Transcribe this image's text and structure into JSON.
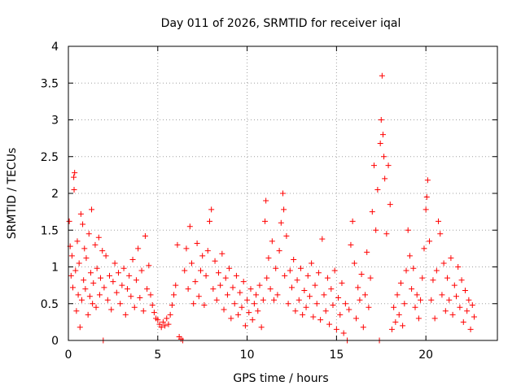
{
  "chart_data": {
    "type": "scatter",
    "title": "Day 011 of 2026, SRMTID for receiver iqal",
    "xlabel": "GPS time / hours",
    "ylabel": "SRMTID / TECUs",
    "xlim": [
      0,
      24
    ],
    "ylim": [
      0,
      4
    ],
    "xticks": [
      0,
      5,
      10,
      15,
      20
    ],
    "xtick_labels": [
      "0",
      "5",
      "10",
      "15",
      "20"
    ],
    "yticks": [
      0,
      0.5,
      1,
      1.5,
      2,
      2.5,
      3,
      3.5,
      4
    ],
    "ytick_labels": [
      "0",
      "0.5",
      "1",
      "1.5",
      "2",
      "2.5",
      "3",
      "3.5",
      "4"
    ],
    "grid": true,
    "marker": "+",
    "color": "#ff0000",
    "series": [
      {
        "name": "SRMTID",
        "points": [
          [
            0.05,
            1.62
          ],
          [
            0.1,
            1.28
          ],
          [
            0.15,
            0.88
          ],
          [
            0.2,
            1.15
          ],
          [
            0.25,
            0.72
          ],
          [
            0.3,
            2.22
          ],
          [
            0.32,
            2.05
          ],
          [
            0.35,
            2.28
          ],
          [
            0.4,
            0.95
          ],
          [
            0.45,
            0.4
          ],
          [
            0.5,
            1.35
          ],
          [
            0.55,
            0.62
          ],
          [
            0.6,
            1.05
          ],
          [
            0.65,
            0.18
          ],
          [
            0.7,
            1.72
          ],
          [
            0.75,
            0.55
          ],
          [
            0.8,
            1.58
          ],
          [
            0.85,
            0.82
          ],
          [
            0.9,
            1.25
          ],
          [
            0.95,
            0.7
          ],
          [
            1.0,
            1.12
          ],
          [
            1.1,
            0.35
          ],
          [
            1.15,
            1.45
          ],
          [
            1.2,
            0.6
          ],
          [
            1.25,
            0.92
          ],
          [
            1.3,
            1.78
          ],
          [
            1.35,
            0.5
          ],
          [
            1.4,
            0.78
          ],
          [
            1.5,
            1.3
          ],
          [
            1.55,
            0.45
          ],
          [
            1.6,
            0.98
          ],
          [
            1.7,
            1.4
          ],
          [
            1.75,
            0.62
          ],
          [
            1.8,
            0.85
          ],
          [
            1.9,
            1.22
          ],
          [
            1.95,
            0.0
          ],
          [
            2.0,
            0.72
          ],
          [
            2.1,
            1.15
          ],
          [
            2.2,
            0.55
          ],
          [
            2.3,
            0.88
          ],
          [
            2.4,
            0.42
          ],
          [
            2.5,
            0.8
          ],
          [
            2.6,
            1.05
          ],
          [
            2.7,
            0.65
          ],
          [
            2.8,
            0.92
          ],
          [
            2.9,
            0.5
          ],
          [
            3.0,
            0.75
          ],
          [
            3.1,
            0.98
          ],
          [
            3.2,
            0.35
          ],
          [
            3.3,
            0.7
          ],
          [
            3.4,
            0.88
          ],
          [
            3.5,
            0.6
          ],
          [
            3.6,
            1.1
          ],
          [
            3.7,
            0.45
          ],
          [
            3.8,
            0.82
          ],
          [
            3.9,
            1.25
          ],
          [
            4.0,
            0.58
          ],
          [
            4.1,
            0.95
          ],
          [
            4.2,
            0.4
          ],
          [
            4.3,
            1.42
          ],
          [
            4.4,
            0.7
          ],
          [
            4.5,
            1.02
          ],
          [
            4.6,
            0.62
          ],
          [
            4.7,
            0.48
          ],
          [
            4.8,
            0.38
          ],
          [
            4.9,
            0.3
          ],
          [
            5.0,
            0.28
          ],
          [
            5.1,
            0.22
          ],
          [
            5.2,
            0.18
          ],
          [
            5.3,
            0.25
          ],
          [
            5.4,
            0.2
          ],
          [
            5.5,
            0.3
          ],
          [
            5.6,
            0.22
          ],
          [
            5.7,
            0.35
          ],
          [
            5.8,
            0.48
          ],
          [
            5.9,
            0.62
          ],
          [
            6.0,
            0.75
          ],
          [
            6.1,
            1.3
          ],
          [
            6.2,
            0.05
          ],
          [
            6.3,
            0.02
          ],
          [
            6.4,
            0.0
          ],
          [
            6.5,
            0.95
          ],
          [
            6.6,
            1.25
          ],
          [
            6.7,
            0.7
          ],
          [
            6.8,
            1.55
          ],
          [
            6.9,
            1.05
          ],
          [
            7.0,
            0.5
          ],
          [
            7.1,
            0.8
          ],
          [
            7.2,
            1.32
          ],
          [
            7.3,
            0.6
          ],
          [
            7.4,
            0.95
          ],
          [
            7.5,
            1.15
          ],
          [
            7.6,
            0.48
          ],
          [
            7.7,
            0.88
          ],
          [
            7.8,
            1.22
          ],
          [
            7.9,
            1.62
          ],
          [
            8.0,
            1.78
          ],
          [
            8.1,
            0.7
          ],
          [
            8.2,
            1.08
          ],
          [
            8.3,
            0.55
          ],
          [
            8.4,
            0.92
          ],
          [
            8.5,
            0.75
          ],
          [
            8.6,
            1.18
          ],
          [
            8.7,
            0.42
          ],
          [
            8.8,
            0.85
          ],
          [
            8.9,
            0.62
          ],
          [
            9.0,
            0.98
          ],
          [
            9.1,
            0.3
          ],
          [
            9.2,
            0.72
          ],
          [
            9.3,
            0.5
          ],
          [
            9.4,
            0.88
          ],
          [
            9.5,
            0.35
          ],
          [
            9.6,
            0.65
          ],
          [
            9.7,
            0.45
          ],
          [
            9.8,
            0.8
          ],
          [
            9.9,
            0.2
          ],
          [
            10.0,
            0.55
          ],
          [
            10.1,
            0.38
          ],
          [
            10.2,
            0.7
          ],
          [
            10.3,
            0.28
          ],
          [
            10.4,
            0.5
          ],
          [
            10.5,
            0.62
          ],
          [
            10.6,
            0.4
          ],
          [
            10.7,
            0.75
          ],
          [
            10.8,
            0.18
          ],
          [
            10.9,
            0.55
          ],
          [
            11.0,
            1.62
          ],
          [
            11.05,
            1.9
          ],
          [
            11.1,
            0.85
          ],
          [
            11.2,
            1.12
          ],
          [
            11.3,
            0.7
          ],
          [
            11.4,
            1.35
          ],
          [
            11.5,
            0.55
          ],
          [
            11.6,
            0.98
          ],
          [
            11.7,
            0.62
          ],
          [
            11.8,
            1.22
          ],
          [
            11.9,
            1.6
          ],
          [
            12.0,
            2.0
          ],
          [
            12.05,
            1.78
          ],
          [
            12.1,
            0.88
          ],
          [
            12.2,
            1.42
          ],
          [
            12.3,
            0.5
          ],
          [
            12.4,
            0.95
          ],
          [
            12.5,
            0.72
          ],
          [
            12.6,
            1.1
          ],
          [
            12.7,
            0.4
          ],
          [
            12.8,
            0.82
          ],
          [
            12.9,
            0.55
          ],
          [
            13.0,
            0.98
          ],
          [
            13.1,
            0.35
          ],
          [
            13.2,
            0.68
          ],
          [
            13.3,
            0.45
          ],
          [
            13.4,
            0.88
          ],
          [
            13.5,
            0.6
          ],
          [
            13.6,
            1.05
          ],
          [
            13.7,
            0.32
          ],
          [
            13.8,
            0.75
          ],
          [
            13.9,
            0.5
          ],
          [
            14.0,
            0.92
          ],
          [
            14.1,
            0.28
          ],
          [
            14.2,
            1.38
          ],
          [
            14.3,
            0.62
          ],
          [
            14.4,
            0.4
          ],
          [
            14.5,
            0.85
          ],
          [
            14.6,
            0.22
          ],
          [
            14.7,
            0.7
          ],
          [
            14.8,
            0.48
          ],
          [
            14.9,
            0.95
          ],
          [
            15.0,
            0.15
          ],
          [
            15.1,
            0.58
          ],
          [
            15.2,
            0.35
          ],
          [
            15.3,
            0.78
          ],
          [
            15.4,
            0.1
          ],
          [
            15.5,
            0.5
          ],
          [
            15.6,
            0.0
          ],
          [
            15.7,
            0.42
          ],
          [
            15.8,
            1.3
          ],
          [
            15.9,
            1.62
          ],
          [
            16.0,
            1.05
          ],
          [
            16.1,
            0.3
          ],
          [
            16.2,
            0.72
          ],
          [
            16.3,
            0.55
          ],
          [
            16.4,
            0.9
          ],
          [
            16.5,
            0.18
          ],
          [
            16.6,
            0.62
          ],
          [
            16.7,
            1.2
          ],
          [
            16.8,
            0.45
          ],
          [
            16.9,
            0.85
          ],
          [
            17.0,
            1.75
          ],
          [
            17.1,
            2.38
          ],
          [
            17.2,
            1.5
          ],
          [
            17.3,
            2.05
          ],
          [
            17.4,
            0.0
          ],
          [
            17.45,
            2.68
          ],
          [
            17.5,
            3.0
          ],
          [
            17.55,
            3.6
          ],
          [
            17.6,
            2.8
          ],
          [
            17.65,
            2.5
          ],
          [
            17.7,
            2.2
          ],
          [
            17.8,
            1.45
          ],
          [
            17.9,
            2.38
          ],
          [
            18.0,
            1.85
          ],
          [
            18.1,
            0.15
          ],
          [
            18.2,
            0.45
          ],
          [
            18.3,
            0.25
          ],
          [
            18.4,
            0.62
          ],
          [
            18.5,
            0.35
          ],
          [
            18.6,
            0.78
          ],
          [
            18.7,
            0.2
          ],
          [
            18.8,
            0.5
          ],
          [
            18.9,
            0.95
          ],
          [
            19.0,
            1.5
          ],
          [
            19.1,
            1.15
          ],
          [
            19.2,
            0.7
          ],
          [
            19.3,
            0.98
          ],
          [
            19.4,
            0.45
          ],
          [
            19.5,
            0.62
          ],
          [
            19.6,
            0.3
          ],
          [
            19.7,
            0.55
          ],
          [
            19.8,
            0.85
          ],
          [
            19.9,
            1.25
          ],
          [
            20.0,
            1.78
          ],
          [
            20.05,
            1.95
          ],
          [
            20.1,
            2.18
          ],
          [
            20.2,
            1.35
          ],
          [
            20.3,
            0.55
          ],
          [
            20.4,
            0.82
          ],
          [
            20.5,
            0.3
          ],
          [
            20.6,
            0.95
          ],
          [
            20.7,
            1.62
          ],
          [
            20.8,
            1.45
          ],
          [
            20.9,
            0.62
          ],
          [
            21.0,
            1.05
          ],
          [
            21.1,
            0.4
          ],
          [
            21.2,
            0.85
          ],
          [
            21.3,
            0.55
          ],
          [
            21.4,
            1.12
          ],
          [
            21.5,
            0.35
          ],
          [
            21.6,
            0.75
          ],
          [
            21.7,
            0.6
          ],
          [
            21.8,
            1.0
          ],
          [
            21.9,
            0.45
          ],
          [
            22.0,
            0.82
          ],
          [
            22.1,
            0.25
          ],
          [
            22.2,
            0.68
          ],
          [
            22.3,
            0.4
          ],
          [
            22.4,
            0.55
          ],
          [
            22.5,
            0.15
          ],
          [
            22.6,
            0.48
          ],
          [
            22.7,
            0.32
          ]
        ]
      }
    ]
  }
}
